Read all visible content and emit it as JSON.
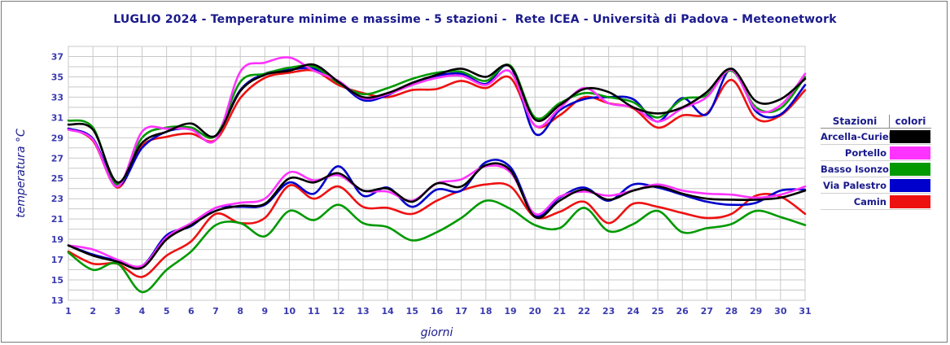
{
  "chart_data": {
    "type": "line",
    "title": "LUGLIO 2024 - Temperature minime e massime - 5 stazioni -  Rete ICEA - Università di Padova - Meteonetwork",
    "xlabel": "giorni",
    "ylabel": "temperatura °C",
    "x": [
      1,
      2,
      3,
      4,
      5,
      6,
      7,
      8,
      9,
      10,
      11,
      12,
      13,
      14,
      15,
      16,
      17,
      18,
      19,
      20,
      21,
      22,
      23,
      24,
      25,
      26,
      27,
      28,
      29,
      30,
      31
    ],
    "xlim": [
      1,
      31
    ],
    "ylim": [
      13,
      38
    ],
    "yticks": [
      13,
      15,
      17,
      19,
      21,
      23,
      25,
      27,
      29,
      31,
      33,
      35,
      37
    ],
    "grid": true,
    "legend": {
      "header_station": "Stazioni",
      "header_color": "colori",
      "placement": "right"
    },
    "series": [
      {
        "name": "Arcella-Curiel",
        "color": "#000000",
        "tmax": [
          30.3,
          29.8,
          24.6,
          28.5,
          29.6,
          30.4,
          29.2,
          33.6,
          35.2,
          35.6,
          36.2,
          34.5,
          33.0,
          33.4,
          34.4,
          35.2,
          35.8,
          35.0,
          36.0,
          30.8,
          32.2,
          33.8,
          33.5,
          32.0,
          31.4,
          32.0,
          33.5,
          35.8,
          32.6,
          32.8,
          34.8
        ],
        "tmin": [
          18.4,
          17.4,
          16.8,
          16.2,
          19.0,
          20.4,
          21.8,
          22.3,
          22.5,
          25.0,
          24.6,
          25.5,
          23.8,
          24.0,
          22.7,
          24.5,
          24.2,
          26.3,
          25.8,
          21.2,
          22.8,
          23.9,
          22.9,
          23.8,
          24.2,
          23.5,
          23.0,
          22.9,
          22.9,
          23.1,
          23.8
        ]
      },
      {
        "name": "Portello",
        "color": "#ff33ff",
        "tmax": [
          29.8,
          28.8,
          24.2,
          29.6,
          29.9,
          29.8,
          28.8,
          35.5,
          36.4,
          36.9,
          35.6,
          34.6,
          32.9,
          33.3,
          34.2,
          34.9,
          35.1,
          34.2,
          35.5,
          30.2,
          31.9,
          33.9,
          32.4,
          32.0,
          30.6,
          31.9,
          33.0,
          35.7,
          31.8,
          32.2,
          35.3
        ],
        "tmin": [
          18.4,
          18.0,
          17.0,
          16.4,
          19.2,
          20.6,
          22.1,
          22.6,
          23.0,
          25.6,
          24.8,
          25.3,
          23.8,
          23.7,
          22.8,
          24.5,
          24.9,
          26.2,
          25.6,
          21.5,
          23.2,
          23.7,
          23.3,
          23.8,
          24.4,
          23.8,
          23.5,
          23.4,
          23.1,
          23.4,
          24.2
        ]
      },
      {
        "name": "Basso Isonzo",
        "color": "#009900",
        "tmax": [
          30.7,
          30.0,
          24.4,
          29.0,
          30.0,
          30.0,
          29.2,
          34.5,
          35.3,
          35.9,
          36.0,
          34.4,
          33.3,
          33.9,
          34.8,
          35.4,
          35.5,
          34.6,
          36.1,
          31.0,
          32.4,
          33.4,
          33.0,
          32.5,
          31.0,
          32.8,
          33.2,
          35.6,
          32.0,
          31.9,
          35.0
        ],
        "tmin": [
          17.7,
          16.0,
          16.6,
          13.8,
          16.0,
          17.8,
          20.4,
          20.6,
          19.3,
          21.8,
          20.9,
          22.4,
          20.6,
          20.2,
          18.9,
          19.7,
          21.1,
          22.8,
          22.0,
          20.4,
          20.1,
          22.1,
          19.8,
          20.5,
          21.8,
          19.7,
          20.1,
          20.5,
          21.8,
          21.2,
          20.4
        ]
      },
      {
        "name": "Via Palestro",
        "color": "#0000cc",
        "tmax": [
          29.9,
          28.9,
          24.3,
          28.0,
          29.6,
          29.9,
          29.2,
          33.7,
          35.3,
          35.7,
          35.8,
          34.5,
          32.7,
          33.2,
          34.4,
          35.1,
          35.3,
          34.3,
          36.0,
          29.4,
          31.7,
          32.8,
          33.0,
          32.8,
          30.6,
          32.9,
          31.3,
          35.8,
          31.6,
          31.3,
          34.2
        ],
        "tmin": [
          18.4,
          17.5,
          16.9,
          16.4,
          19.4,
          20.3,
          22.1,
          22.2,
          22.4,
          24.6,
          23.5,
          26.2,
          23.3,
          24.1,
          22.2,
          23.9,
          23.8,
          26.6,
          26.1,
          21.4,
          23.1,
          24.1,
          22.8,
          24.4,
          24.1,
          23.4,
          22.7,
          22.4,
          22.6,
          23.8,
          23.9
        ]
      },
      {
        "name": "Camin",
        "color": "#ee1111",
        "tmax": [
          29.9,
          28.7,
          24.1,
          28.2,
          29.1,
          29.4,
          28.8,
          32.9,
          34.9,
          35.4,
          35.6,
          34.2,
          33.4,
          33.0,
          33.7,
          33.8,
          34.6,
          33.9,
          34.9,
          30.2,
          31.2,
          33.0,
          32.4,
          31.9,
          30.0,
          31.2,
          31.4,
          34.7,
          30.9,
          31.2,
          33.7
        ],
        "tmin": [
          17.8,
          16.6,
          16.6,
          15.3,
          17.4,
          18.8,
          21.5,
          20.6,
          21.1,
          24.3,
          23.0,
          24.2,
          22.2,
          22.1,
          21.5,
          22.8,
          23.8,
          24.4,
          24.2,
          21.2,
          21.7,
          22.7,
          20.6,
          22.5,
          22.2,
          21.6,
          21.1,
          21.5,
          23.3,
          23.2,
          21.5
        ]
      }
    ]
  }
}
